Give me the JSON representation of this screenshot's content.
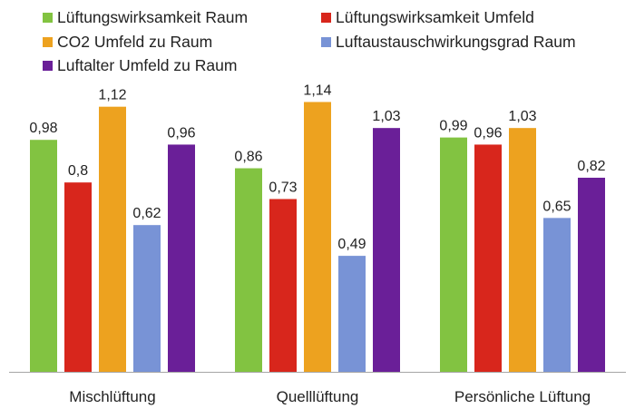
{
  "chart_data": {
    "type": "bar",
    "title": "",
    "xlabel": "",
    "ylabel": "",
    "ylim": [
      0,
      1.2
    ],
    "grid": false,
    "legend_position": "top",
    "categories": [
      "Mischlüftung",
      "Quelllüftung",
      "Persönliche Lüftung"
    ],
    "series": [
      {
        "name": "Lüftungswirksamkeit Raum",
        "color": "#82c341",
        "values": [
          0.98,
          0.86,
          0.99
        ],
        "labels": [
          "0,98",
          "0,86",
          "0,99"
        ]
      },
      {
        "name": "Lüftungswirksamkeit Umfeld",
        "color": "#d8261c",
        "values": [
          0.8,
          0.73,
          0.96
        ],
        "labels": [
          "0,8",
          "0,73",
          "0,96"
        ]
      },
      {
        "name": "CO2 Umfeld zu Raum",
        "color": "#eda21f",
        "values": [
          1.12,
          1.14,
          1.03
        ],
        "labels": [
          "1,12",
          "1,14",
          "1,03"
        ]
      },
      {
        "name": "Luftaustauschwirkungsgrad Raum",
        "color": "#7893d6",
        "values": [
          0.62,
          0.49,
          0.65
        ],
        "labels": [
          "0,62",
          "0,49",
          "0,65"
        ]
      },
      {
        "name": "Luftalter Umfeld zu Raum",
        "color": "#6a1f98",
        "values": [
          0.96,
          1.03,
          0.82
        ],
        "labels": [
          "0,96",
          "1,03",
          "0,82"
        ]
      }
    ]
  }
}
